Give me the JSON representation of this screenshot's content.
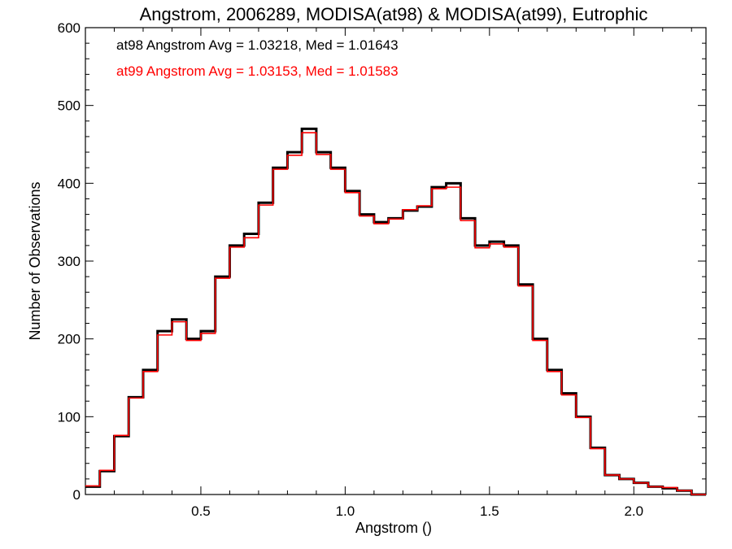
{
  "chart_data": {
    "type": "line",
    "title": "Angstrom, 2006289, MODISA(at98) & MODISA(at99), Eutrophic",
    "xlabel": "Angstrom ()",
    "ylabel": "Number of Observations",
    "xlim": [
      0.1,
      2.25
    ],
    "ylim": [
      0,
      600
    ],
    "x_ticks": [
      0.5,
      1.0,
      1.5,
      2.0
    ],
    "x_tick_labels": [
      "0.5",
      "1.0",
      "1.5",
      "2.0"
    ],
    "y_ticks": [
      0,
      100,
      200,
      300,
      400,
      500,
      600
    ],
    "y_tick_labels": [
      "0",
      "100",
      "200",
      "300",
      "400",
      "500",
      "600"
    ],
    "grid": false,
    "legend_position": "top-left",
    "annotations": [
      {
        "text": "at98 Angstrom Avg = 1.03218, Med = 1.01643",
        "color": "#000000"
      },
      {
        "text": "at99 Angstrom Avg = 1.03153, Med = 1.01583",
        "color": "#ff0000"
      }
    ],
    "series": [
      {
        "color": "#000000",
        "step": "hist",
        "x": [
          0.1,
          0.15,
          0.2,
          0.25,
          0.3,
          0.35,
          0.4,
          0.45,
          0.5,
          0.55,
          0.6,
          0.65,
          0.7,
          0.75,
          0.8,
          0.85,
          0.9,
          0.95,
          1.0,
          1.05,
          1.1,
          1.15,
          1.2,
          1.25,
          1.3,
          1.35,
          1.4,
          1.45,
          1.5,
          1.55,
          1.6,
          1.65,
          1.7,
          1.75,
          1.8,
          1.85,
          1.9,
          1.95,
          2.0,
          2.05,
          2.1,
          2.15,
          2.2,
          2.25
        ],
        "y": [
          10,
          30,
          75,
          125,
          160,
          210,
          225,
          200,
          210,
          280,
          320,
          335,
          375,
          420,
          440,
          470,
          440,
          420,
          390,
          360,
          350,
          355,
          365,
          370,
          395,
          400,
          355,
          320,
          325,
          320,
          270,
          200,
          160,
          130,
          100,
          60,
          25,
          20,
          15,
          10,
          8,
          5,
          0,
          0
        ]
      },
      {
        "color": "#ff0000",
        "step": "hist",
        "x": [
          0.1,
          0.15,
          0.2,
          0.25,
          0.3,
          0.35,
          0.4,
          0.45,
          0.5,
          0.55,
          0.6,
          0.65,
          0.7,
          0.75,
          0.8,
          0.85,
          0.9,
          0.95,
          1.0,
          1.05,
          1.1,
          1.15,
          1.2,
          1.25,
          1.3,
          1.35,
          1.4,
          1.45,
          1.5,
          1.55,
          1.6,
          1.65,
          1.7,
          1.75,
          1.8,
          1.85,
          1.9,
          1.95,
          2.0,
          2.05,
          2.1,
          2.15,
          2.2,
          2.25
        ],
        "y": [
          11,
          31,
          76,
          124,
          158,
          205,
          222,
          198,
          207,
          278,
          318,
          330,
          372,
          418,
          436,
          465,
          437,
          418,
          388,
          358,
          348,
          354,
          366,
          371,
          393,
          395,
          352,
          317,
          322,
          318,
          268,
          198,
          158,
          128,
          99,
          59,
          25,
          20,
          15,
          10,
          9,
          5,
          0,
          0
        ]
      }
    ]
  }
}
